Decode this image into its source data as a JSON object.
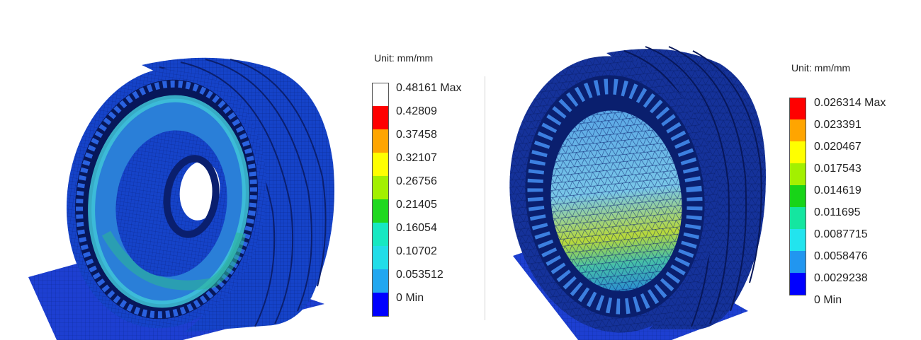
{
  "left": {
    "unit": "Unit: mm/mm",
    "legend": [
      {
        "label": "0.48161 Max",
        "color": "#ffffff"
      },
      {
        "label": "0.42809",
        "color": "#ff0000"
      },
      {
        "label": "0.37458",
        "color": "#ffa500"
      },
      {
        "label": "0.32107",
        "color": "#ffff00"
      },
      {
        "label": "0.26756",
        "color": "#a3f000"
      },
      {
        "label": "0.21405",
        "color": "#1fd81f"
      },
      {
        "label": "0.16054",
        "color": "#17e8c2"
      },
      {
        "label": "0.10702",
        "color": "#22dde8"
      },
      {
        "label": "0.053512",
        "color": "#22a7f0"
      },
      {
        "label": "0 Min",
        "color": "#0000ff"
      }
    ]
  },
  "right": {
    "unit": "Unit: mm/mm",
    "legend": [
      {
        "label": "0.026314 Max",
        "color": "#ff0000"
      },
      {
        "label": "0.023391",
        "color": "#ffa500"
      },
      {
        "label": "0.020467",
        "color": "#ffff00"
      },
      {
        "label": "0.017543",
        "color": "#a3f000"
      },
      {
        "label": "0.014619",
        "color": "#18d418"
      },
      {
        "label": "0.011695",
        "color": "#14e6a0"
      },
      {
        "label": "0.0087715",
        "color": "#22e4ee"
      },
      {
        "label": "0.0058476",
        "color": "#2196f0"
      },
      {
        "label": "0.0029238",
        "color": "#0000ff"
      },
      {
        "label": "0 Min",
        "color": ""
      }
    ]
  },
  "colors": {
    "tire_dark": "#0a1f6e",
    "tire_blue": "#1543c9",
    "ground": "#1d3fd1"
  }
}
